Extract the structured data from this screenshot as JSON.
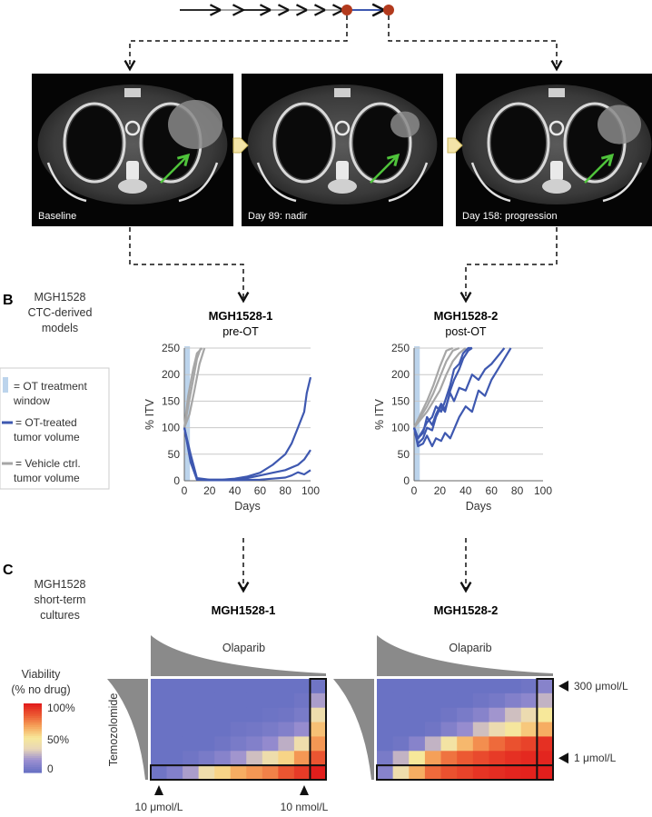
{
  "timeline": {
    "colors": {
      "black": "#111111",
      "gray": "#9a9a9a",
      "blue": "#3e58b0",
      "dot": "#b23a1d"
    }
  },
  "ct_panels": [
    {
      "label": "Baseline"
    },
    {
      "label": "Day 89: nadir"
    },
    {
      "label": "Day 158: progression"
    }
  ],
  "panel_b": {
    "letter": "B",
    "sidebar": {
      "line1": "MGH1528",
      "line2": "CTC-derived",
      "line3": "models"
    },
    "legend": [
      {
        "l1": "= OT treatment",
        "l2": "window",
        "kind": "window"
      },
      {
        "l1": "= OT-treated",
        "l2": "tumor volume",
        "kind": "treated"
      },
      {
        "l1": "= Vehicle ctrl.",
        "l2": "tumor volume",
        "kind": "vehicle"
      }
    ],
    "colors": {
      "treated": "#3e58b0",
      "vehicle": "#a6a6a6",
      "window": "#bcd4ec",
      "grid": "#c8c8c8"
    }
  },
  "chart_data": [
    {
      "type": "line",
      "title": "MGH1528-1",
      "subtitle": "pre-OT",
      "xlabel": "Days",
      "ylabel": "% ITV",
      "xlim": [
        0,
        100
      ],
      "ylim": [
        0,
        250
      ],
      "xticks": [
        "0",
        "20",
        "40",
        "60",
        "80",
        "100"
      ],
      "yticks": [
        "0",
        "50",
        "100",
        "150",
        "200",
        "250"
      ],
      "treatment_window": [
        0,
        3
      ],
      "series": [
        {
          "name": "Vehicle 1",
          "group": "vehicle",
          "x": [
            0,
            3,
            7,
            10,
            14
          ],
          "y": [
            100,
            160,
            210,
            240,
            255
          ]
        },
        {
          "name": "Vehicle 2",
          "group": "vehicle",
          "x": [
            0,
            3,
            7,
            10,
            13
          ],
          "y": [
            100,
            140,
            190,
            230,
            255
          ]
        },
        {
          "name": "Vehicle 3",
          "group": "vehicle",
          "x": [
            0,
            4,
            8,
            12,
            16
          ],
          "y": [
            100,
            125,
            170,
            220,
            255
          ]
        },
        {
          "name": "OT-treated 1",
          "group": "treated",
          "x": [
            0,
            5,
            10,
            20,
            30,
            40,
            50,
            60,
            70,
            80,
            85,
            90,
            95,
            97,
            100
          ],
          "y": [
            100,
            50,
            5,
            2,
            2,
            4,
            8,
            15,
            30,
            50,
            70,
            100,
            130,
            165,
            195
          ]
        },
        {
          "name": "OT-treated 2",
          "group": "treated",
          "x": [
            0,
            5,
            10,
            20,
            40,
            50,
            60,
            70,
            80,
            90,
            95,
            100
          ],
          "y": [
            100,
            40,
            2,
            2,
            2,
            5,
            10,
            15,
            20,
            30,
            40,
            58
          ]
        },
        {
          "name": "OT-treated 3",
          "group": "treated",
          "x": [
            0,
            5,
            10,
            20,
            40,
            60,
            70,
            80,
            85,
            90,
            95,
            100
          ],
          "y": [
            100,
            35,
            2,
            1,
            1,
            2,
            4,
            6,
            10,
            16,
            12,
            20
          ]
        }
      ]
    },
    {
      "type": "line",
      "title": "MGH1528-2",
      "subtitle": "post-OT",
      "xlabel": "Days",
      "ylabel": "% ITV",
      "xlim": [
        0,
        100
      ],
      "ylim": [
        0,
        250
      ],
      "xticks": [
        "0",
        "20",
        "40",
        "60",
        "80",
        "100"
      ],
      "yticks": [
        "0",
        "50",
        "100",
        "150",
        "200",
        "250"
      ],
      "treatment_window": [
        0,
        3
      ],
      "series": [
        {
          "name": "Vehicle 1",
          "group": "vehicle",
          "x": [
            0,
            5,
            10,
            15,
            20,
            25,
            30,
            35,
            40
          ],
          "y": [
            100,
            115,
            130,
            150,
            170,
            200,
            225,
            240,
            255
          ]
        },
        {
          "name": "Vehicle 2",
          "group": "vehicle",
          "x": [
            0,
            5,
            10,
            15,
            20,
            25,
            30,
            35
          ],
          "y": [
            100,
            120,
            140,
            165,
            195,
            225,
            245,
            255
          ]
        },
        {
          "name": "Vehicle 3",
          "group": "vehicle",
          "x": [
            0,
            5,
            10,
            15,
            20,
            25,
            30
          ],
          "y": [
            100,
            125,
            150,
            180,
            215,
            245,
            255
          ]
        },
        {
          "name": "OT-treated 1",
          "group": "treated",
          "x": [
            0,
            3,
            7,
            10,
            14,
            17,
            21,
            24,
            28,
            31,
            35,
            38,
            42,
            45
          ],
          "y": [
            100,
            70,
            80,
            100,
            95,
            120,
            140,
            130,
            170,
            190,
            210,
            230,
            245,
            255
          ]
        },
        {
          "name": "OT-treated 2",
          "group": "treated",
          "x": [
            0,
            3,
            7,
            10,
            14,
            17,
            21,
            24,
            28,
            31,
            35,
            38,
            42,
            45
          ],
          "y": [
            100,
            80,
            95,
            110,
            120,
            140,
            130,
            150,
            180,
            210,
            220,
            240,
            250,
            255
          ]
        },
        {
          "name": "OT-treated 3",
          "group": "treated",
          "x": [
            0,
            3,
            7,
            10,
            14,
            17,
            21,
            24,
            28,
            35,
            40,
            45,
            50,
            55,
            60,
            65,
            70,
            75
          ],
          "y": [
            100,
            65,
            70,
            85,
            65,
            80,
            75,
            90,
            80,
            120,
            140,
            130,
            170,
            160,
            190,
            210,
            230,
            255
          ]
        },
        {
          "name": "OT-treated 4",
          "group": "treated",
          "x": [
            0,
            3,
            7,
            10,
            14,
            17,
            21,
            24,
            28,
            31,
            35,
            40,
            45,
            50,
            55,
            60,
            65,
            70
          ],
          "y": [
            100,
            80,
            90,
            120,
            105,
            125,
            145,
            135,
            165,
            150,
            175,
            170,
            200,
            190,
            210,
            220,
            235,
            250
          ]
        }
      ]
    },
    {
      "type": "heatmap",
      "title": "MGH1528-1",
      "column_drug": "Olaparib",
      "row_drug": "Temozolomide",
      "markers": {
        "left": "10 μmol/L",
        "right": "10 nmol/L"
      },
      "rows": 7,
      "cols": 11,
      "values": [
        [
          0,
          0,
          0,
          0,
          0,
          0,
          0,
          0,
          0,
          0,
          2
        ],
        [
          0,
          0,
          0,
          0,
          0,
          0,
          0,
          0,
          0,
          2,
          20
        ],
        [
          0,
          0,
          0,
          0,
          0,
          0,
          0,
          1,
          2,
          5,
          40
        ],
        [
          0,
          0,
          0,
          0,
          0,
          2,
          3,
          5,
          8,
          15,
          60
        ],
        [
          0,
          0,
          0,
          0,
          2,
          5,
          8,
          14,
          24,
          40,
          70
        ],
        [
          0,
          0,
          2,
          5,
          10,
          18,
          28,
          40,
          55,
          70,
          85
        ],
        [
          2,
          8,
          20,
          40,
          55,
          65,
          70,
          75,
          85,
          92,
          100
        ]
      ]
    },
    {
      "type": "heatmap",
      "title": "MGH1528-2",
      "column_drug": "Olaparib",
      "row_drug": "Temozolomide",
      "markers": {
        "top": "300 μmol/L",
        "bottom": "1 μmol/L"
      },
      "rows": 7,
      "cols": 11,
      "values": [
        [
          0,
          0,
          0,
          0,
          0,
          0,
          0,
          0,
          0,
          2,
          10
        ],
        [
          0,
          0,
          0,
          0,
          0,
          0,
          2,
          4,
          8,
          12,
          25
        ],
        [
          0,
          0,
          0,
          0,
          2,
          5,
          10,
          18,
          28,
          38,
          50
        ],
        [
          0,
          0,
          0,
          2,
          8,
          15,
          28,
          38,
          48,
          58,
          65
        ],
        [
          0,
          2,
          10,
          25,
          45,
          62,
          72,
          80,
          86,
          90,
          95
        ],
        [
          5,
          25,
          50,
          68,
          78,
          84,
          88,
          92,
          95,
          97,
          98
        ],
        [
          10,
          40,
          65,
          80,
          86,
          90,
          94,
          96,
          98,
          99,
          100
        ]
      ]
    }
  ],
  "panel_c": {
    "letter": "C",
    "sidebar": {
      "line1": "MGH1528",
      "line2": "short-term",
      "line3": "cultures"
    },
    "scale": {
      "title1": "Viability",
      "title2": "(% no drug)",
      "t100": "100%",
      "t50": "50%",
      "t0": "0"
    },
    "palette": [
      "#6a72c4",
      "#9b8fd0",
      "#e8d6b8",
      "#f7e89a",
      "#f6a65c",
      "#ec5b33",
      "#e21e1c"
    ]
  }
}
